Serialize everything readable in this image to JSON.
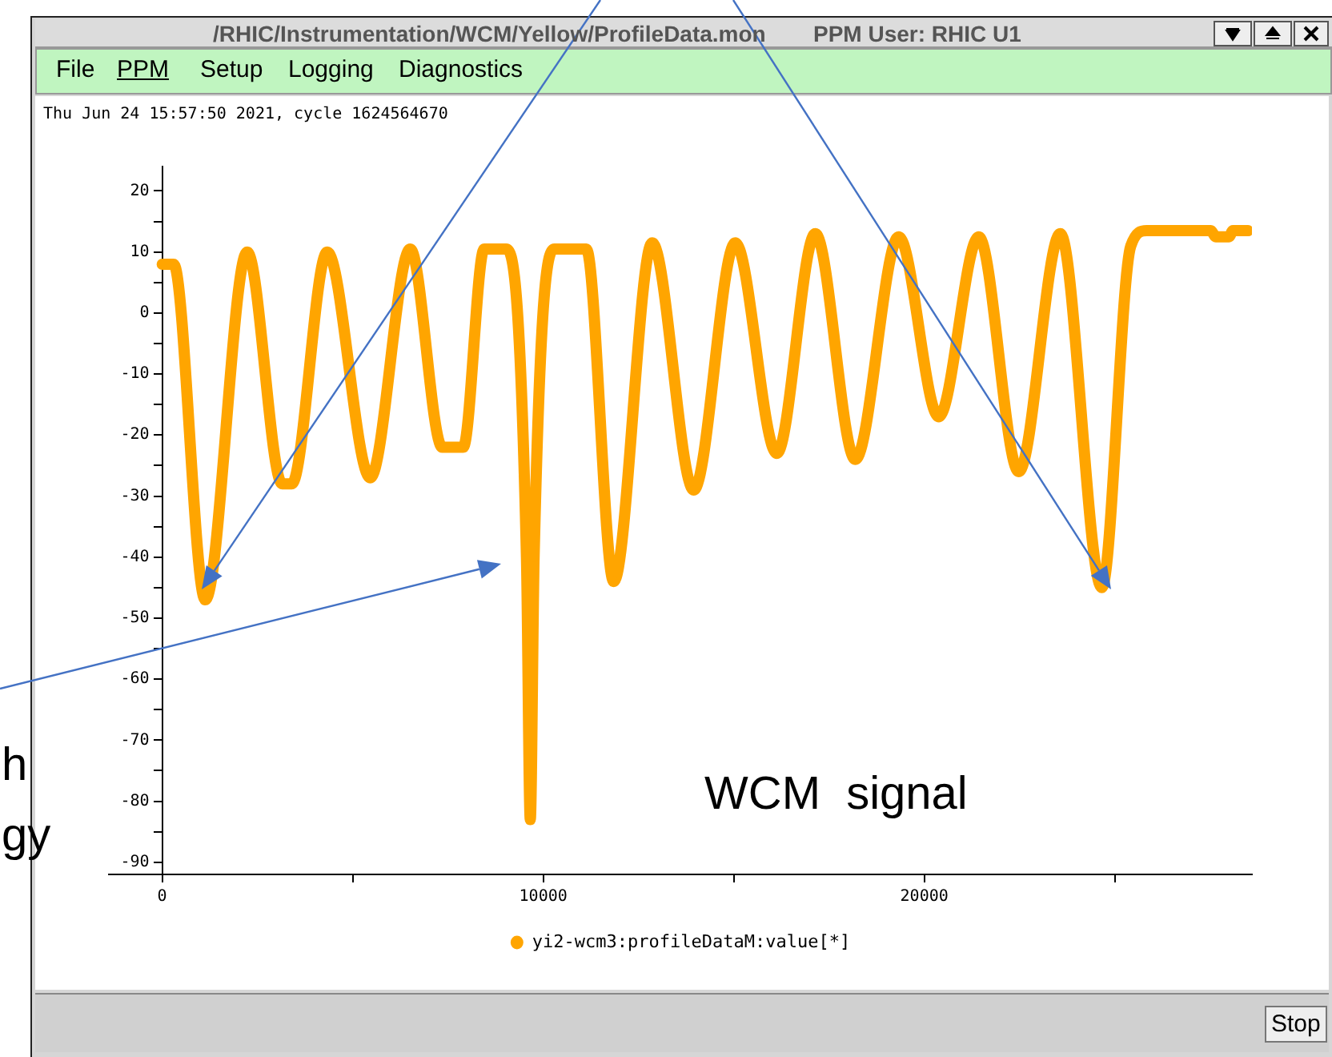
{
  "chart_data": {
    "type": "line",
    "title": "Thu Jun 24 15:57:50 2021, cycle 1624564670",
    "annotations": [
      "/RHIC/Instrumentation/WCM/Yellow/ProfileData.mon",
      "PPM User: RHIC U1",
      "File",
      "PPM",
      "Setup",
      "Logging",
      "Diagnostics",
      "Stop",
      "WCM  signal",
      "h",
      "gy"
    ],
    "x": [
      0,
      300,
      1130,
      2230,
      3150,
      3400,
      4330,
      5460,
      6510,
      7350,
      7900,
      8450,
      9030,
      9560,
      9660,
      9760,
      10290,
      11130,
      11850,
      12860,
      13950,
      15040,
      16130,
      17140,
      18190,
      19330,
      20380,
      21430,
      22480,
      23570,
      24660,
      25420,
      25840,
      27520,
      27650,
      28000,
      28100,
      28500
    ],
    "series": [
      {
        "name": "yi2-wcm3:profileDataM:value[*]",
        "color": "#ffa500",
        "values": [
          8,
          8,
          -47,
          10,
          -28,
          -28,
          10,
          -27,
          10.5,
          -22,
          -22,
          10.5,
          10.5,
          -40,
          -83,
          -40,
          10.5,
          10.5,
          -44,
          11.5,
          -29,
          11.5,
          -23,
          13,
          -24,
          12.5,
          -17,
          12.5,
          -26,
          13,
          -45,
          11,
          13.5,
          13.5,
          12.5,
          12.5,
          13.5,
          13.5
        ]
      }
    ],
    "xlim": [
      -1400,
      28600
    ],
    "xticks": [
      0,
      {
        "value": 5000,
        "label": null
      },
      10000,
      {
        "value": 15000,
        "label": null
      },
      20000,
      {
        "value": 25000,
        "label": null
      }
    ],
    "ylim": [
      -92,
      24
    ],
    "yticks": [
      20,
      {
        "value": 15,
        "label": null
      },
      10,
      {
        "value": 5,
        "label": null
      },
      0,
      {
        "value": -5,
        "label": null
      },
      -10,
      {
        "value": -15,
        "label": null
      },
      -20,
      {
        "value": -25,
        "label": null
      },
      -30,
      {
        "value": -35,
        "label": null
      },
      -40,
      {
        "value": -45,
        "label": null
      },
      -50,
      {
        "value": -55,
        "label": null
      },
      -60,
      {
        "value": -65,
        "label": null
      },
      -70,
      {
        "value": -75,
        "label": null
      },
      -80,
      {
        "value": -85,
        "label": null
      },
      -90
    ],
    "grid": false,
    "legend": "bottom",
    "marker": "circle",
    "line_style": "solid"
  }
}
